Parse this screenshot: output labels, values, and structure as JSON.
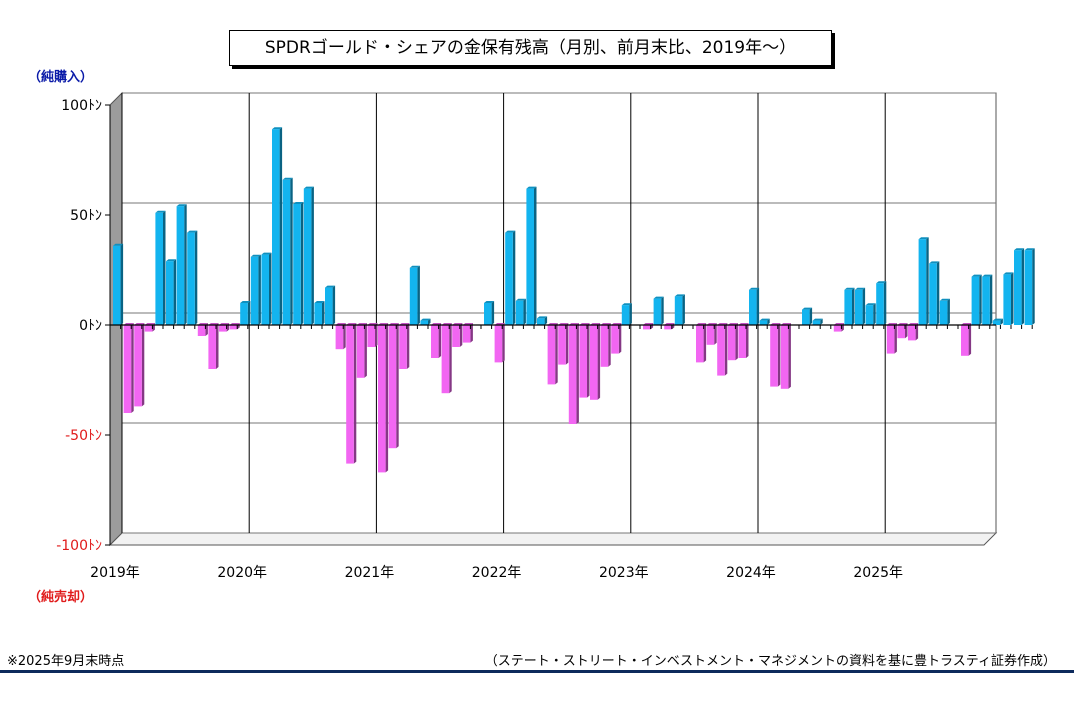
{
  "title": "SPDRゴールド・シェアの金保有残高（月別、前月末比、2019年～）",
  "positive_label": "（純購入）",
  "negative_label": "（純売却）",
  "footnote": "※2025年9月末時点",
  "source": "（ステート・ストリート・インベストメント・マネジメントの資料を基に豊トラスティ証券作成）",
  "colors": {
    "positive": "#13b4ef",
    "negative": "#f266f2",
    "positive_label": "#0a1aa8",
    "negative_label": "#e01b1b"
  },
  "chart_data": {
    "type": "bar",
    "ylim": [
      -100,
      100
    ],
    "y_ticks": [
      {
        "value": 100,
        "label": "100ﾄﾝ",
        "color": "#000000"
      },
      {
        "value": 50,
        "label": "50ﾄﾝ",
        "color": "#000000"
      },
      {
        "value": 0,
        "label": "0ﾄﾝ",
        "color": "#000000"
      },
      {
        "value": -50,
        "label": "-50ﾄﾝ",
        "color": "#e01b1b"
      },
      {
        "value": -100,
        "label": "-100ﾄﾝ",
        "color": "#e01b1b"
      }
    ],
    "year_labels": [
      "2019年",
      "2020年",
      "2021年",
      "2022年",
      "2023年",
      "2024年",
      "2025年"
    ],
    "grid": true,
    "series": [
      {
        "values": [
          36,
          -40,
          -37,
          -3,
          51,
          29,
          54,
          42,
          -5,
          -20,
          -3,
          -2,
          10,
          31,
          32,
          89,
          66,
          55,
          62,
          10,
          17,
          -11,
          -63,
          -24,
          -10,
          -67,
          -56,
          -20,
          26,
          2,
          -15,
          -31,
          -10,
          -8,
          0,
          10,
          -17,
          42,
          11,
          62,
          3,
          -27,
          -18,
          -45,
          -33,
          -34,
          -19,
          -13,
          9,
          0,
          -2,
          12,
          -2,
          13,
          0,
          -17,
          -9,
          -23,
          -16,
          -15,
          16,
          2,
          -28,
          -29,
          0,
          7,
          2,
          0,
          -3,
          16,
          16,
          9,
          19,
          -13,
          -6,
          -7,
          39,
          28,
          11,
          0,
          -14,
          22,
          22,
          2,
          23,
          34,
          34
        ]
      }
    ]
  }
}
